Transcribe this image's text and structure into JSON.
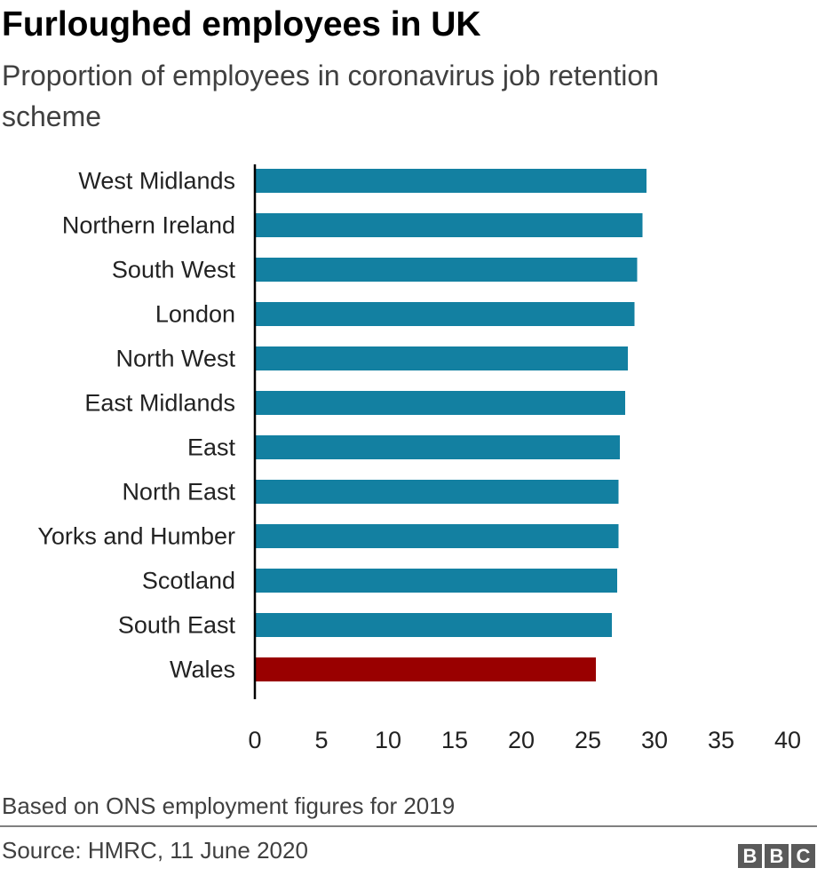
{
  "chart_data": {
    "type": "bar",
    "orientation": "horizontal",
    "title": "Furloughed employees in UK",
    "subtitle": "Proportion of employees in coronavirus job retention scheme",
    "categories": [
      "West Midlands",
      "Northern Ireland",
      "South West",
      "London",
      "North West",
      "East Midlands",
      "East",
      "North East",
      "Yorks and Humber",
      "Scotland",
      "South East",
      "Wales"
    ],
    "values": [
      29.4,
      29.1,
      28.7,
      28.5,
      28.0,
      27.8,
      27.4,
      27.3,
      27.3,
      27.2,
      26.8,
      25.6
    ],
    "highlight": "Wales",
    "xlim": [
      0,
      40
    ],
    "xticks": [
      "0",
      "5",
      "10",
      "15",
      "20",
      "25",
      "30",
      "35",
      "40"
    ],
    "xlabel": "",
    "ylabel": "",
    "grid": false,
    "colors": {
      "default": "#1380A1",
      "highlight": "#990000"
    },
    "note": "Based on ONS employment figures for 2019",
    "source": "Source: HMRC, 11 June 2020"
  },
  "logo": "BBC"
}
